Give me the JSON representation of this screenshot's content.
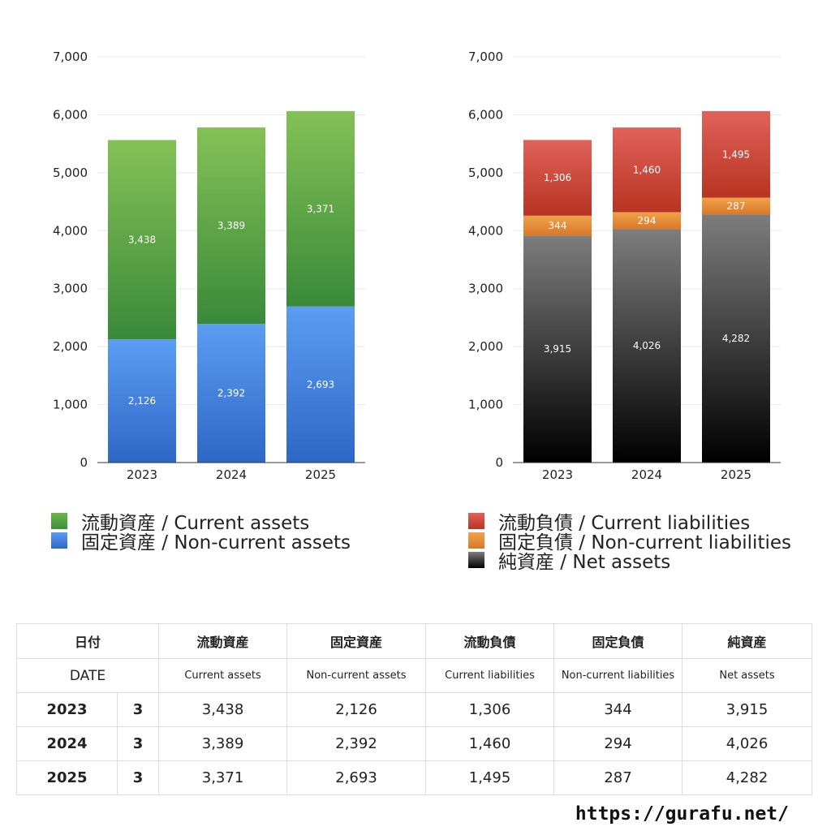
{
  "chart_data": [
    {
      "type": "bar",
      "stacked": true,
      "categories": [
        "2023",
        "2024",
        "2025"
      ],
      "ylim": [
        0,
        7000
      ],
      "yticks": [
        "0",
        "1,000",
        "2,000",
        "3,000",
        "4,000",
        "5,000",
        "6,000",
        "7,000"
      ],
      "grid": true,
      "series": [
        {
          "name": "固定資産 / Non-current assets",
          "values": [
            2126,
            2392,
            2693
          ],
          "labels": [
            "2,126",
            "2,392",
            "2,693"
          ],
          "color_top": "#5b9df2",
          "color_bottom": "#2e67c6"
        },
        {
          "name": "流動資産 / Current assets",
          "values": [
            3438,
            3389,
            3371
          ],
          "labels": [
            "3,438",
            "3,389",
            "3,371"
          ],
          "color_top": "#84c156",
          "color_bottom": "#3a8a3a"
        }
      ],
      "legend": [
        "流動資産 / Current assets",
        "固定資産 / Non-current assets"
      ],
      "legend_colors": [
        "#5aa83f",
        "#3f86dd"
      ]
    },
    {
      "type": "bar",
      "stacked": true,
      "categories": [
        "2023",
        "2024",
        "2025"
      ],
      "ylim": [
        0,
        7000
      ],
      "yticks": [
        "0",
        "1,000",
        "2,000",
        "3,000",
        "4,000",
        "5,000",
        "6,000",
        "7,000"
      ],
      "grid": true,
      "series": [
        {
          "name": "純資産 / Net assets",
          "values": [
            3915,
            4026,
            4282
          ],
          "labels": [
            "3,915",
            "4,026",
            "4,282"
          ],
          "color_top": "#7d7d7d",
          "color_bottom": "#000000"
        },
        {
          "name": "固定負債 / Non-current liabilities",
          "values": [
            344,
            294,
            287
          ],
          "labels": [
            "344",
            "294",
            "287"
          ],
          "color_top": "#f0a24a",
          "color_bottom": "#d9782a"
        },
        {
          "name": "流動負債 / Current liabilities",
          "values": [
            1306,
            1460,
            1495
          ],
          "labels": [
            "1,306",
            "1,460",
            "1,495"
          ],
          "color_top": "#e0625a",
          "color_bottom": "#b83422"
        }
      ],
      "legend": [
        "流動負債 / Current liabilities",
        "固定負債 / Non-current liabilities",
        "純資産 / Net assets"
      ],
      "legend_colors": [
        "#d04a3a",
        "#e58a35",
        "#333333"
      ]
    }
  ],
  "table": {
    "header_jp": [
      "日付",
      "流動資産",
      "固定資産",
      "流動負債",
      "固定負債",
      "純資産"
    ],
    "header_en": [
      "DATE",
      "Current assets",
      "Non-current assets",
      "Current liabilities",
      "Non-current liabilities",
      "Net assets"
    ],
    "rows": [
      {
        "year": "2023",
        "month": "3",
        "values": [
          "3,438",
          "2,126",
          "1,306",
          "344",
          "3,915"
        ]
      },
      {
        "year": "2024",
        "month": "3",
        "values": [
          "3,389",
          "2,392",
          "1,460",
          "294",
          "4,026"
        ]
      },
      {
        "year": "2025",
        "month": "3",
        "values": [
          "3,371",
          "2,693",
          "1,495",
          "287",
          "4,282"
        ]
      }
    ]
  },
  "footer": {
    "url": "https://gurafu.net/"
  }
}
